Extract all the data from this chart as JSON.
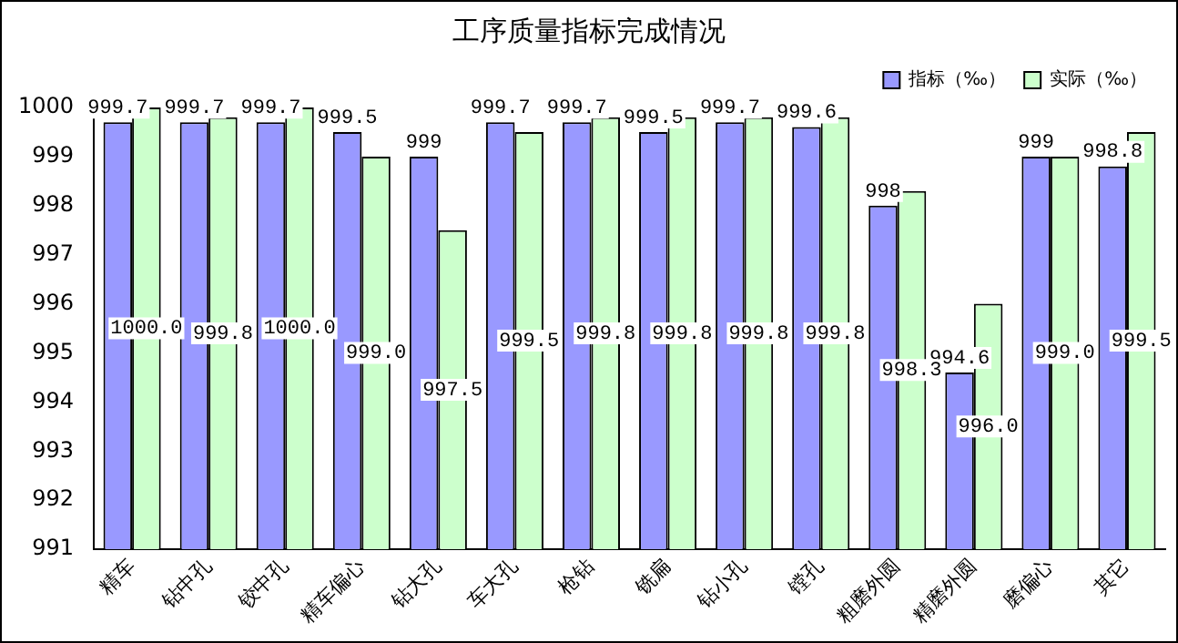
{
  "chart_data": {
    "type": "bar",
    "title": "工序质量指标完成情况",
    "categories": [
      "精车",
      "钻中孔",
      "铰中孔",
      "精车偏心",
      "钻大孔",
      "车大孔",
      "枪钻",
      "铣扁",
      "钻小孔",
      "镗孔",
      "粗磨外圆",
      "精磨外圆",
      "磨偏心",
      "其它"
    ],
    "series": [
      {
        "name": "指标（‰）",
        "color": "#9999ff",
        "values": [
          999.7,
          999.7,
          999.7,
          999.5,
          999,
          999.7,
          999.7,
          999.5,
          999.7,
          999.6,
          998,
          994.6,
          999,
          998.8
        ],
        "value_labels": [
          "999.7",
          "999.7",
          "999.7",
          "999.5",
          "999",
          "999.7",
          "999.7",
          "999.5",
          "999.7",
          "999.6",
          "998",
          "994.6",
          "999",
          "998.8"
        ]
      },
      {
        "name": "实际（‰）",
        "color": "#ccffcc",
        "values": [
          1000.0,
          999.8,
          1000.0,
          999.0,
          997.5,
          999.5,
          999.8,
          999.8,
          999.8,
          999.8,
          998.3,
          996.0,
          999.0,
          999.5
        ],
        "value_labels": [
          "1000.0",
          "999.8",
          "1000.0",
          "999.0",
          "997.5",
          "999.5",
          "999.8",
          "999.8",
          "999.8",
          "999.8",
          "998.3",
          "996.0",
          "999.0",
          "999.5"
        ]
      }
    ],
    "ylim": [
      991,
      1000
    ],
    "yticks": [
      991,
      992,
      993,
      994,
      995,
      996,
      997,
      998,
      999,
      1000
    ],
    "grid": false,
    "legend": "top right"
  }
}
